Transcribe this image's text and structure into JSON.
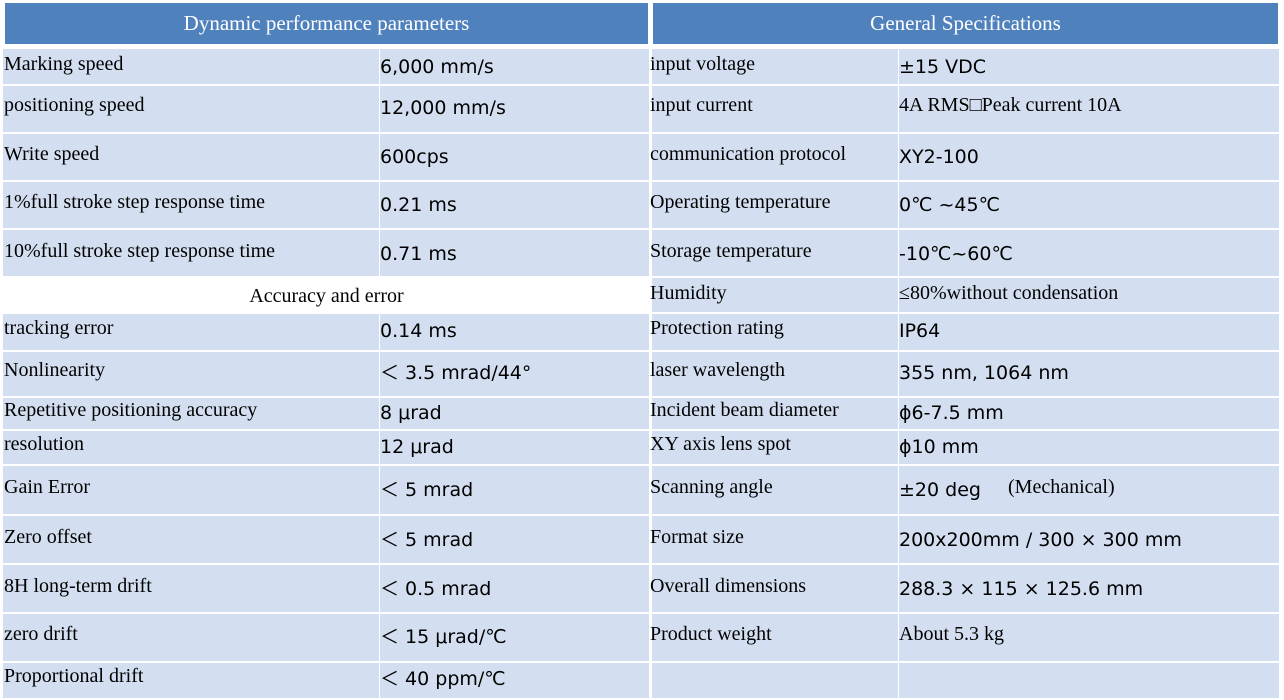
{
  "headers": {
    "left": "Dynamic performance parameters",
    "right": "General Specifications"
  },
  "section_label": "Accuracy and error",
  "left_rows": [
    {
      "label": "Marking speed",
      "value": "6,000 mm/s"
    },
    {
      "label": "positioning speed",
      "value": "12,000 mm/s"
    },
    {
      "label": "Write speed",
      "value": "600cps"
    },
    {
      "label": "1%full stroke step response time",
      "value": "0.21 ms"
    },
    {
      "label": "10%full stroke step response time",
      "value": "0.71 ms"
    },
    {
      "label": "tracking error",
      "value": "0.14 ms"
    },
    {
      "label": "Nonlinearity",
      "value": "＜ 3.5 mrad/44°"
    },
    {
      "label": "Repetitive positioning accuracy",
      "value": "8 μrad"
    },
    {
      "label": "resolution",
      "value": "12 μrad"
    },
    {
      "label": "Gain Error",
      "value": "＜ 5 mrad"
    },
    {
      "label": "Zero offset",
      "value": "＜ 5 mrad"
    },
    {
      "label": "8H long-term drift",
      "value": "＜ 0.5 mrad"
    },
    {
      "label": "zero drift",
      "value": "＜ 15 μrad/℃"
    },
    {
      "label": "Proportional drift",
      "value": "＜ 40 ppm/℃"
    }
  ],
  "right_rows": [
    {
      "label": "input voltage",
      "value": "±15 VDC"
    },
    {
      "label": "input current",
      "value": "4A RMS□Peak current 10A"
    },
    {
      "label": "communication protocol",
      "value": "XY2-100"
    },
    {
      "label": "Operating temperature",
      "value": "0℃ ~45℃"
    },
    {
      "label": "Storage temperature",
      "value": "-10℃~60℃"
    },
    {
      "label": "Humidity",
      "value": "≤80%without condensation"
    },
    {
      "label": "Protection rating",
      "value": "IP64"
    },
    {
      "label": "laser wavelength",
      "value": "355 nm, 1064 nm"
    },
    {
      "label": "Incident beam diameter",
      "value": "ϕ6-7.5 mm"
    },
    {
      "label": "XY axis lens spot",
      "value": "ϕ10 mm"
    },
    {
      "label": "Scanning angle",
      "value": "±20 deg",
      "note": "(Mechanical)"
    },
    {
      "label": "Format size",
      "value": "200x200mm / 300 × 300 mm"
    },
    {
      "label": "Overall dimensions",
      "value": "288.3 × 115 × 125.6 mm"
    },
    {
      "label": "Product weight",
      "value": "About 5.3 kg"
    },
    {
      "label": "",
      "value": ""
    }
  ]
}
